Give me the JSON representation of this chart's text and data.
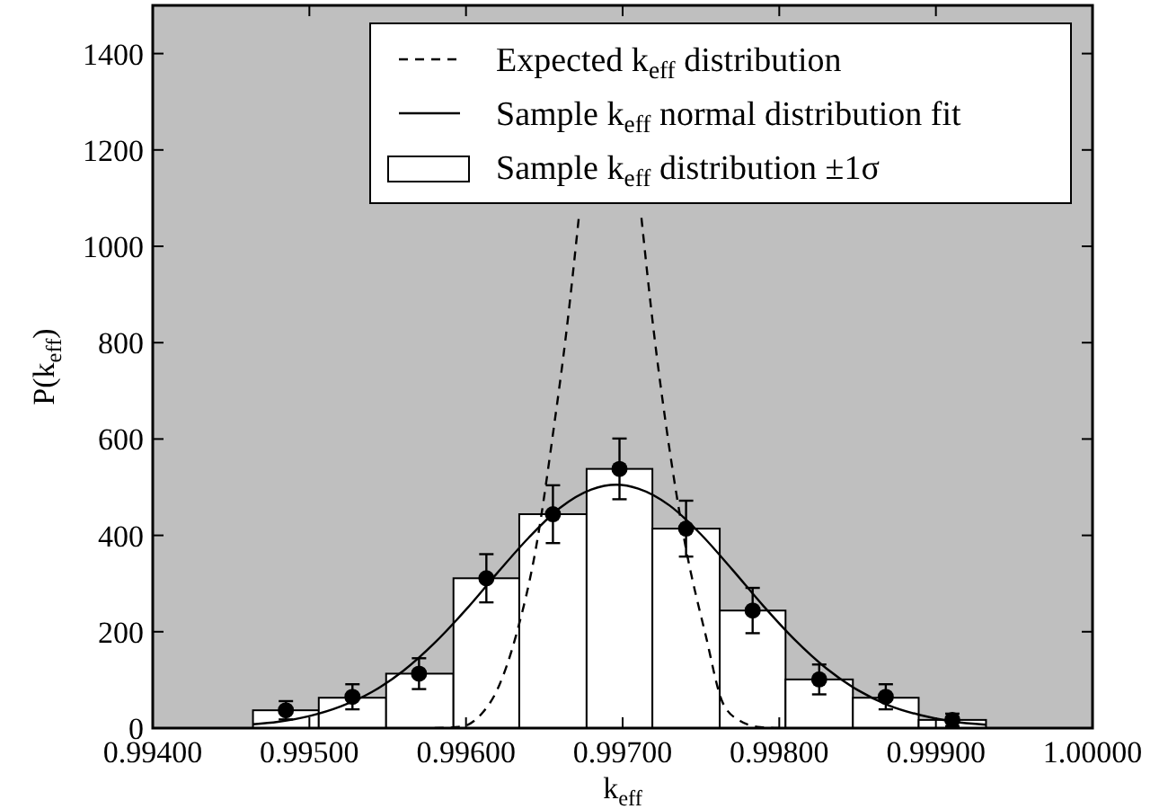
{
  "chart_data": {
    "type": "histogram",
    "xlabel": "k$_{eff}$",
    "ylabel": "P(k$_{eff}$)",
    "xlim": [
      0.994,
      1.0
    ],
    "ylim": [
      0,
      1500
    ],
    "xticks": [
      {
        "value": 0.994,
        "label": "0.99400"
      },
      {
        "value": 0.995,
        "label": "0.99500"
      },
      {
        "value": 0.996,
        "label": "0.99600"
      },
      {
        "value": 0.997,
        "label": "0.99700"
      },
      {
        "value": 0.998,
        "label": "0.99800"
      },
      {
        "value": 0.999,
        "label": "0.99900"
      },
      {
        "value": 1.0,
        "label": "1.00000"
      }
    ],
    "yticks": [
      0,
      200,
      400,
      600,
      800,
      1000,
      1200,
      1400
    ],
    "grid": false,
    "legend": "top right",
    "series": [
      {
        "name": "Sample k$_{eff}$ distribution ±1σ",
        "color": "#ffffff",
        "bins": [
          0.99464,
          0.99506,
          0.99549,
          0.99592,
          0.99634,
          0.99677,
          0.99719,
          0.99762,
          0.99804,
          0.99847,
          0.99889,
          0.99932
        ],
        "values": [
          37,
          63,
          113,
          311,
          444,
          538,
          414,
          244,
          101,
          63,
          17
        ]
      },
      {
        "type": "scatter",
        "color": "#000000",
        "marker": "circle",
        "x": [
          0.99485,
          0.995275,
          0.9957,
          0.99613,
          0.996555,
          0.99698,
          0.997405,
          0.99783,
          0.998255,
          0.99868,
          0.999105
        ],
        "values": [
          37,
          65,
          113,
          311,
          444,
          538,
          414,
          244,
          101,
          65,
          17
        ],
        "errors": [
          19,
          26,
          32,
          50,
          60,
          63,
          58,
          47,
          31,
          26,
          13
        ]
      },
      {
        "type": "line",
        "name": "Sample k$_{eff}$ normal distribution fit",
        "color": "#000000",
        "line_style": "solid",
        "x": [
          0.99464,
          0.9948,
          0.995,
          0.9952,
          0.9954,
          0.9956,
          0.9958,
          0.996,
          0.9962,
          0.9964,
          0.9966,
          0.9968,
          0.99696,
          0.9971,
          0.9973,
          0.9975,
          0.9977,
          0.9979,
          0.9981,
          0.9983,
          0.9985,
          0.9987,
          0.9989,
          0.9991,
          0.99932
        ],
        "values": [
          8,
          13,
          25,
          45,
          75,
          119,
          177,
          246,
          322,
          395,
          457,
          495,
          505,
          497,
          462,
          402,
          329,
          253,
          183,
          124,
          79,
          47,
          27,
          14,
          7
        ]
      },
      {
        "type": "line",
        "name": "Expected k$_{eff}$ distribution",
        "color": "#000000",
        "line_style": "dashed",
        "x": [
          0.9958,
          0.99597,
          0.9961,
          0.9962,
          0.99632,
          0.99645,
          0.99656,
          0.99664,
          0.99672,
          0.9969,
          0.99712,
          0.9972,
          0.99728,
          0.9974,
          0.99753,
          0.99764,
          0.99775,
          0.99788,
          0.998
        ],
        "values": [
          0,
          3,
          30,
          80,
          193,
          380,
          622,
          820,
          1059,
          null,
          1059,
          820,
          622,
          380,
          193,
          52,
          15,
          2,
          0
        ]
      }
    ]
  }
}
